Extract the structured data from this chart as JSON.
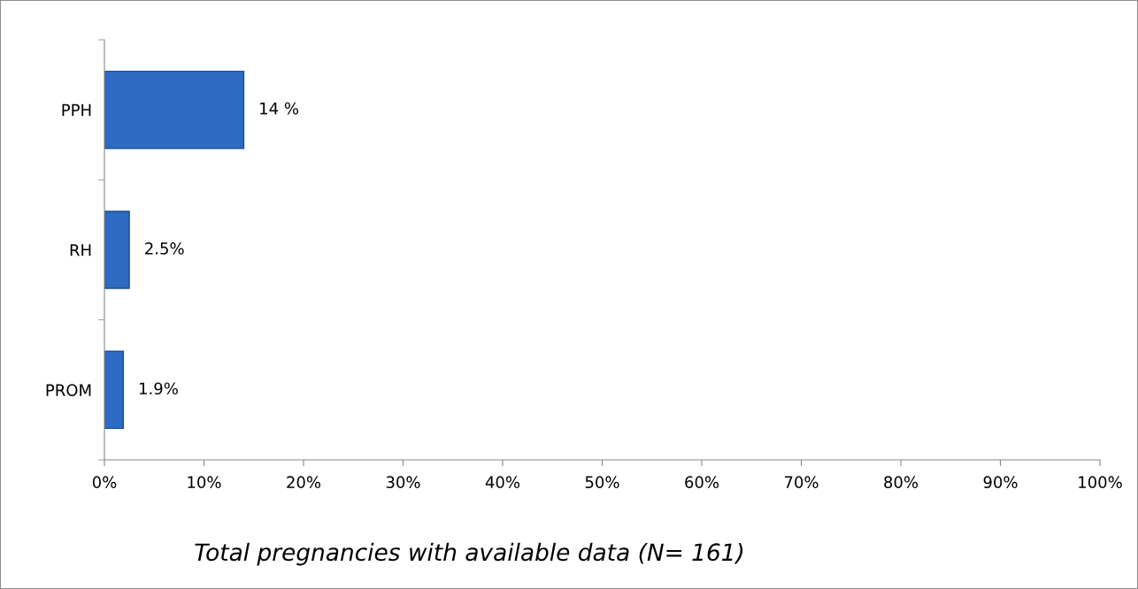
{
  "chart_data": {
    "type": "bar",
    "orientation": "horizontal",
    "xlabel": "Total pregnancies with available data (N= 161)",
    "categories": [
      "PPH",
      "RH",
      "PROM"
    ],
    "values": [
      14,
      2.5,
      1.9
    ],
    "value_labels": [
      "14 %",
      "2.5%",
      "1.9%"
    ],
    "color": "#2e6bc2",
    "xlim": [
      0,
      100
    ],
    "xticks": [
      {
        "value": 0,
        "label": "0%"
      },
      {
        "value": 10,
        "label": "10%"
      },
      {
        "value": 20,
        "label": "20%"
      },
      {
        "value": 30,
        "label": "30%"
      },
      {
        "value": 40,
        "label": "40%"
      },
      {
        "value": 50,
        "label": "50%"
      },
      {
        "value": 60,
        "label": "60%"
      },
      {
        "value": 70,
        "label": "70%"
      },
      {
        "value": 80,
        "label": "80%"
      },
      {
        "value": 90,
        "label": "90%"
      },
      {
        "value": 100,
        "label": "100%"
      }
    ],
    "grid": false,
    "legend": false
  }
}
